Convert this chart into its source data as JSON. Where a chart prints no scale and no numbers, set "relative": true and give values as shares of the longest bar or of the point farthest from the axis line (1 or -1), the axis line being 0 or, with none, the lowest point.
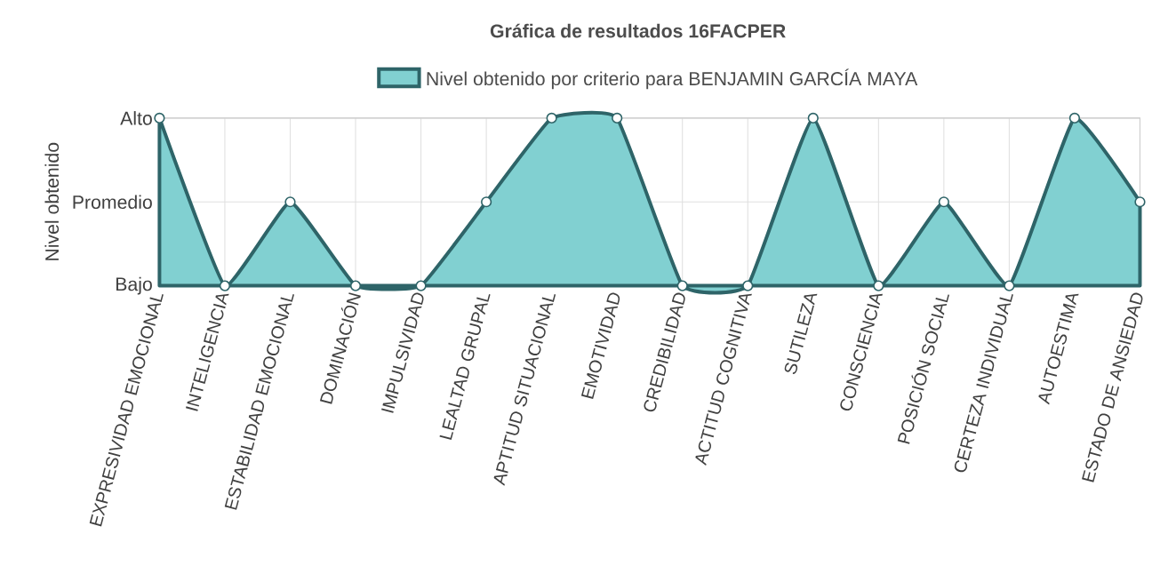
{
  "chart_data": {
    "type": "area",
    "title": "Gráfica de resultados 16FACPER",
    "ylabel": "Nivel obtenido",
    "categories": [
      "EXPRESIVIDAD EMOCIONAL",
      "INTELIGENCIA",
      "ESTABILIDAD EMOCIONAL",
      "DOMINACIÓN",
      "IMPULSIVIDAD",
      "LEALTAD GRUPAL",
      "APTITUD SITUACIONAL",
      "EMOTIVIDAD",
      "CREDIBILIDAD",
      "ACTITUD COGNITIVA",
      "SUTILEZA",
      "CONSCIENCIA",
      "POSICIÓN SOCIAL",
      "CERTEZA INDIVIDUAL",
      "AUTOESTIMA",
      "ESTADO DE ANSIEDAD"
    ],
    "series": [
      {
        "name": "Nivel obtenido por criterio para BENJAMIN GARCÍA MAYA",
        "color": "#2e6468",
        "values": [
          1,
          0,
          0.5,
          0,
          0,
          0.5,
          1,
          1,
          0,
          0,
          1,
          0,
          0.5,
          0,
          1,
          0.5
        ]
      }
    ],
    "relative": true,
    "annotations": [
      "Bajo",
      "Promedio",
      "Alto"
    ],
    "grid": true,
    "legend": "top",
    "marker": "circle",
    "line_style": "solid"
  }
}
